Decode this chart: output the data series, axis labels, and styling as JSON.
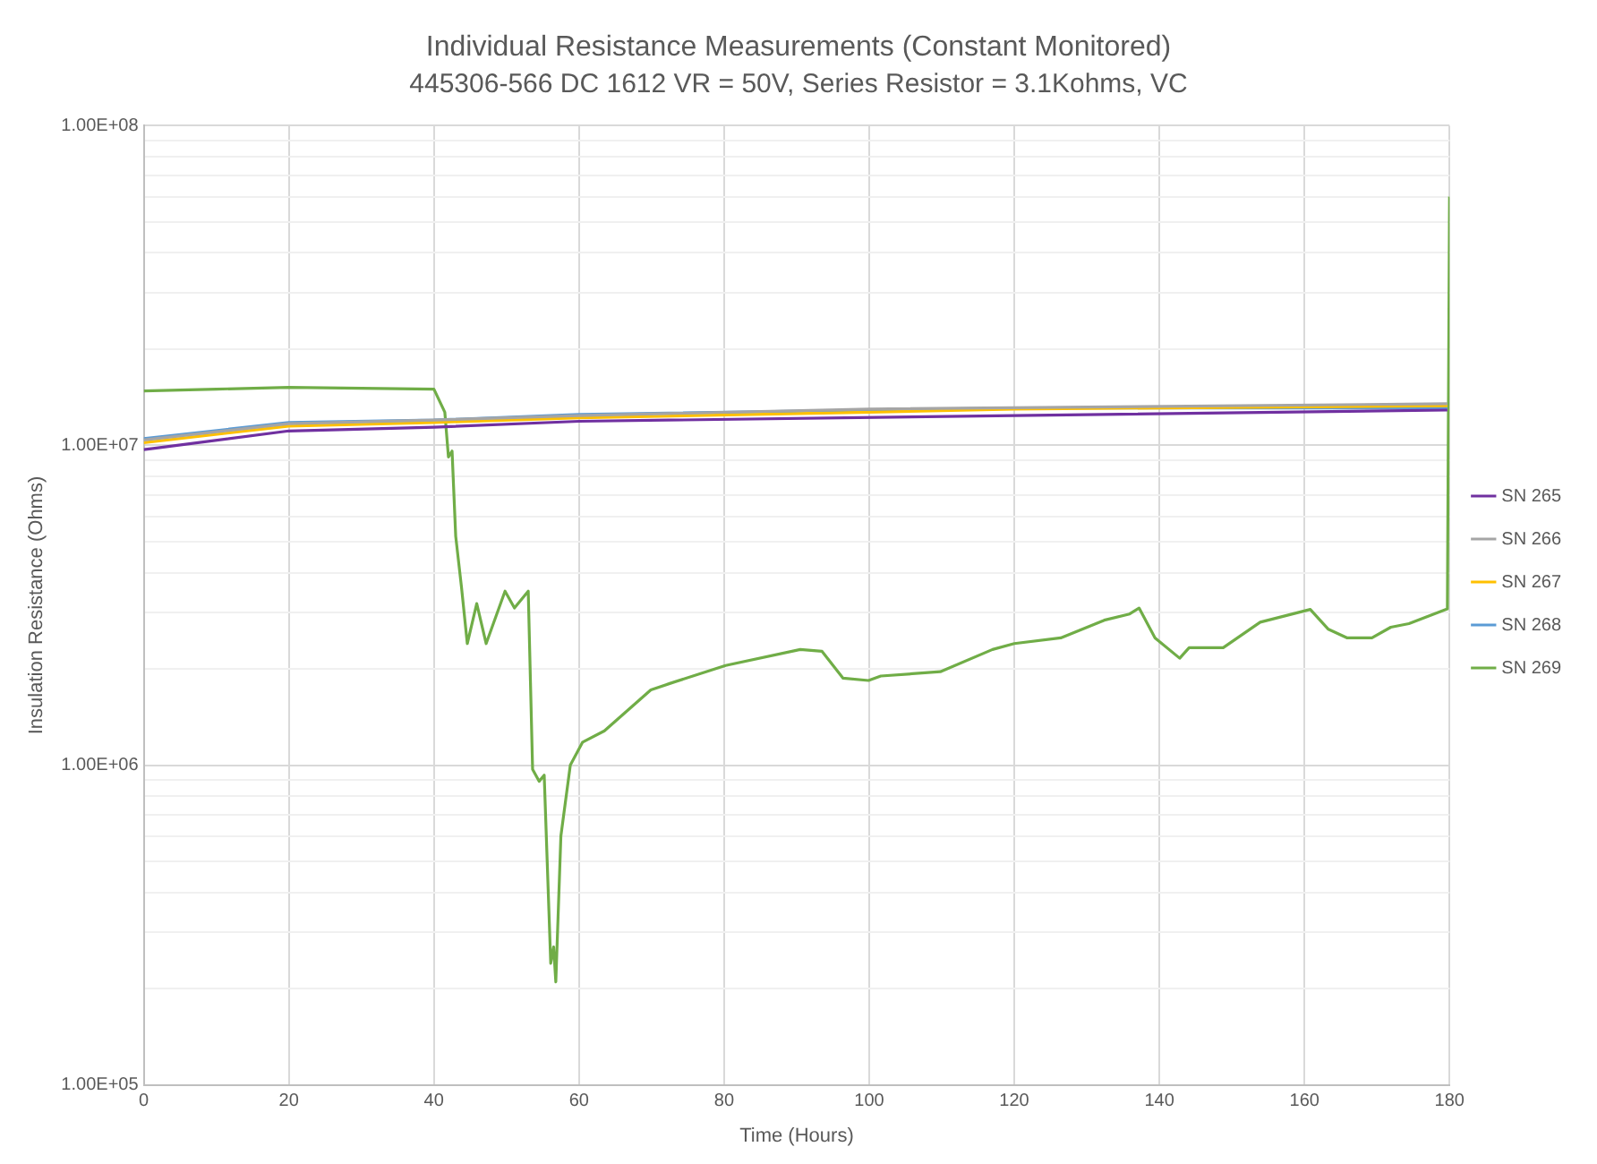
{
  "chart_data": {
    "type": "line",
    "title": "Individual Resistance Measurements (Constant Monitored)",
    "subtitle": "445306-566 DC 1612 VR = 50V, Series Resistor = 3.1Kohms, VC",
    "xlabel": "Time (Hours)",
    "ylabel": "Insulation Resistance (Ohms)",
    "log": "y",
    "grid": true,
    "legend": "right",
    "marker": "none",
    "line_style": "solid",
    "xlim": [
      0,
      180
    ],
    "xticks": [
      0,
      20,
      40,
      60,
      80,
      100,
      120,
      140,
      160,
      180
    ],
    "ylim": [
      100000,
      100000000
    ],
    "yticks": [
      {
        "value": 100000,
        "label": "1.00E+05"
      },
      {
        "value": 200000,
        "label": null
      },
      {
        "value": 300000,
        "label": null
      },
      {
        "value": 400000,
        "label": null
      },
      {
        "value": 500000,
        "label": null
      },
      {
        "value": 600000,
        "label": null
      },
      {
        "value": 700000,
        "label": null
      },
      {
        "value": 800000,
        "label": null
      },
      {
        "value": 900000,
        "label": null
      },
      {
        "value": 1000000,
        "label": "1.00E+06"
      },
      {
        "value": 2000000,
        "label": null
      },
      {
        "value": 3000000,
        "label": null
      },
      {
        "value": 4000000,
        "label": null
      },
      {
        "value": 5000000,
        "label": null
      },
      {
        "value": 6000000,
        "label": null
      },
      {
        "value": 7000000,
        "label": null
      },
      {
        "value": 8000000,
        "label": null
      },
      {
        "value": 9000000,
        "label": null
      },
      {
        "value": 10000000,
        "label": "1.00E+07"
      },
      {
        "value": 20000000,
        "label": null
      },
      {
        "value": 30000000,
        "label": null
      },
      {
        "value": 40000000,
        "label": null
      },
      {
        "value": 50000000,
        "label": null
      },
      {
        "value": 60000000,
        "label": null
      },
      {
        "value": 70000000,
        "label": null
      },
      {
        "value": 80000000,
        "label": null
      },
      {
        "value": 90000000,
        "label": null
      },
      {
        "value": 100000000,
        "label": "1.00E+08"
      }
    ],
    "series": [
      {
        "name": "SN 265",
        "color": "#7030a0",
        "x": [
          0,
          1.5,
          20,
          40,
          60,
          120,
          179.7
        ],
        "values": [
          9700000,
          9800000,
          11100000,
          11400000,
          11900000,
          12400000,
          12900000
        ]
      },
      {
        "name": "SN 266",
        "color": "#a5a5a5",
        "x": [
          0,
          20,
          40,
          60,
          100,
          179.7
        ],
        "values": [
          10400000,
          11700000,
          12000000,
          12400000,
          13000000,
          13500000
        ]
      },
      {
        "name": "SN 267",
        "color": "#ffc000",
        "x": [
          0,
          20,
          40,
          60,
          100,
          120,
          179.7
        ],
        "values": [
          10200000,
          11500000,
          11800000,
          12200000,
          12700000,
          13000000,
          13300000
        ]
      },
      {
        "name": "SN 268",
        "color": "#5b9bd5",
        "x": [
          0,
          20,
          40,
          60,
          120,
          179.7
        ],
        "values": [
          10500000,
          11800000,
          12000000,
          12500000,
          13100000,
          13100000
        ]
      },
      {
        "name": "SN 269",
        "color": "#70ad47",
        "x": [
          0,
          10,
          20,
          30,
          40,
          41.5,
          42,
          42.5,
          43,
          43.8,
          44.6,
          45.9,
          47.2,
          49.8,
          51.1,
          53,
          53.6,
          54.5,
          55.2,
          56.1,
          56.5,
          56.8,
          57.5,
          58.8,
          60.5,
          63.5,
          69.9,
          72.5,
          80.2,
          90.5,
          93.5,
          96.4,
          99.9,
          101.6,
          109.8,
          117,
          120,
          126.4,
          132.4,
          135.9,
          137.2,
          139.4,
          142.8,
          144.1,
          148.8,
          153.9,
          160.8,
          163.3,
          165.9,
          169.3,
          171.9,
          174.4,
          179.7,
          180
        ],
        "values": [
          14800000,
          15000000,
          15200000,
          15100000,
          15000000,
          12700000,
          9200000,
          9600000,
          5200000,
          3600000,
          2400000,
          3200000,
          2400000,
          3500000,
          3100000,
          3500000,
          970000,
          890000,
          930000,
          240000,
          270000,
          210000,
          600000,
          1000000,
          1180000,
          1280000,
          1720000,
          1800000,
          2050000,
          2300000,
          2270000,
          1870000,
          1840000,
          1900000,
          1960000,
          2300000,
          2400000,
          2500000,
          2840000,
          2970000,
          3100000,
          2500000,
          2160000,
          2330000,
          2330000,
          2800000,
          3070000,
          2660000,
          2500000,
          2500000,
          2700000,
          2770000,
          3080000,
          60000000
        ]
      }
    ]
  }
}
